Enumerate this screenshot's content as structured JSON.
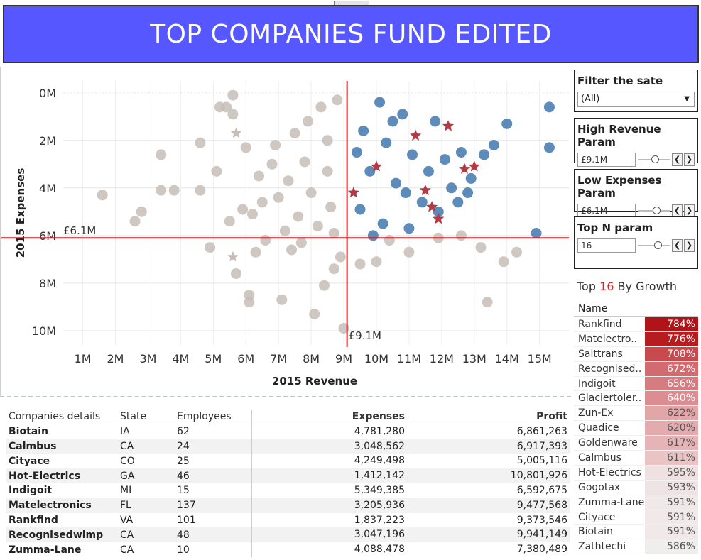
{
  "dashboard": {
    "title": "TOP COMPANIES FUND EDITED",
    "banner_color": "#5757ff"
  },
  "filters": {
    "state": {
      "title": "Filter the sate",
      "value": "(All)"
    },
    "high_revenue": {
      "title": "High Revenue Param",
      "value": "£9.1M",
      "slider_fraction": 0.55
    },
    "low_expenses": {
      "title": "Low Expenses Param",
      "value": "£6.1M",
      "slider_fraction": 0.6
    },
    "top_n": {
      "title": "Top N param",
      "value": "16",
      "slider_fraction": 0.65
    }
  },
  "chart_data": {
    "type": "scatter",
    "xlabel": "2015 Revenue",
    "ylabel": "2015 Expenses",
    "xlim": [
      0.4,
      15.9
    ],
    "ylim": [
      -0.5,
      10.6
    ],
    "x_ticks": [
      "1M",
      "2M",
      "3M",
      "4M",
      "5M",
      "6M",
      "7M",
      "8M",
      "9M",
      "10M",
      "11M",
      "12M",
      "13M",
      "14M",
      "15M"
    ],
    "y_ticks": [
      "0M",
      "2M",
      "4M",
      "6M",
      "8M",
      "10M"
    ],
    "y_axis_reversed": true,
    "grid": true,
    "reference_lines": [
      {
        "axis": "x",
        "value": 9.1,
        "label": "£9.1M"
      },
      {
        "axis": "y",
        "value": 6.1,
        "label": "£6.1M"
      }
    ],
    "colors": {
      "other": "#c7bdb7",
      "selected": "#4b7fb3",
      "top_growth": "#b23a44",
      "reference": "#d21e1e"
    },
    "highlight_points": [
      {
        "x": 11.2,
        "y": 1.8
      },
      {
        "x": 12.2,
        "y": 1.4
      },
      {
        "x": 10.0,
        "y": 3.1
      },
      {
        "x": 12.7,
        "y": 3.2
      },
      {
        "x": 13.0,
        "y": 3.1
      },
      {
        "x": 11.5,
        "y": 4.1
      },
      {
        "x": 9.3,
        "y": 4.2
      },
      {
        "x": 11.7,
        "y": 4.8
      },
      {
        "x": 11.9,
        "y": 5.3
      }
    ],
    "faded_highlight_points": [
      {
        "x": 5.7,
        "y": 1.7
      },
      {
        "x": 5.6,
        "y": 6.9
      }
    ],
    "selected_points": [
      {
        "x": 15.3,
        "y": 0.6
      },
      {
        "x": 14.0,
        "y": 1.3
      },
      {
        "x": 13.6,
        "y": 2.2
      },
      {
        "x": 15.3,
        "y": 2.3
      },
      {
        "x": 13.3,
        "y": 2.6
      },
      {
        "x": 14.9,
        "y": 5.9
      },
      {
        "x": 12.6,
        "y": 2.5
      },
      {
        "x": 12.9,
        "y": 3.6
      },
      {
        "x": 12.5,
        "y": 4.6
      },
      {
        "x": 12.8,
        "y": 4.2
      },
      {
        "x": 10.1,
        "y": 0.4
      },
      {
        "x": 10.8,
        "y": 0.9
      },
      {
        "x": 11.8,
        "y": 1.2
      },
      {
        "x": 9.6,
        "y": 1.6
      },
      {
        "x": 10.3,
        "y": 2.1
      },
      {
        "x": 11.1,
        "y": 2.6
      },
      {
        "x": 9.8,
        "y": 3.3
      },
      {
        "x": 10.6,
        "y": 3.8
      },
      {
        "x": 11.4,
        "y": 4.6
      },
      {
        "x": 9.5,
        "y": 4.9
      },
      {
        "x": 10.2,
        "y": 5.5
      },
      {
        "x": 11.0,
        "y": 5.7
      },
      {
        "x": 9.9,
        "y": 6.0
      },
      {
        "x": 11.6,
        "y": 3.3
      },
      {
        "x": 12.1,
        "y": 2.8
      },
      {
        "x": 9.4,
        "y": 2.5
      },
      {
        "x": 10.5,
        "y": 1.2
      },
      {
        "x": 12.3,
        "y": 4.0
      },
      {
        "x": 10.9,
        "y": 4.2
      },
      {
        "x": 11.9,
        "y": 5.0
      }
    ],
    "other_points": [
      {
        "x": 1.6,
        "y": 4.3
      },
      {
        "x": 2.8,
        "y": 5.0
      },
      {
        "x": 2.6,
        "y": 5.4
      },
      {
        "x": 3.4,
        "y": 4.1
      },
      {
        "x": 3.8,
        "y": 4.1
      },
      {
        "x": 3.4,
        "y": 2.6
      },
      {
        "x": 4.6,
        "y": 4.1
      },
      {
        "x": 4.6,
        "y": 2.1
      },
      {
        "x": 5.6,
        "y": 0.1
      },
      {
        "x": 5.2,
        "y": 0.6
      },
      {
        "x": 5.4,
        "y": 0.6
      },
      {
        "x": 5.6,
        "y": 0.9
      },
      {
        "x": 4.9,
        "y": 6.5
      },
      {
        "x": 5.7,
        "y": 7.6
      },
      {
        "x": 6.1,
        "y": 8.5
      },
      {
        "x": 6.1,
        "y": 8.8
      },
      {
        "x": 6.6,
        "y": 6.2
      },
      {
        "x": 7.1,
        "y": 8.7
      },
      {
        "x": 7.4,
        "y": 6.6
      },
      {
        "x": 8.1,
        "y": 9.3
      },
      {
        "x": 8.4,
        "y": 8.1
      },
      {
        "x": 9.0,
        "y": 9.9
      },
      {
        "x": 8.7,
        "y": 7.4
      },
      {
        "x": 8.9,
        "y": 6.9
      },
      {
        "x": 6.4,
        "y": 3.5
      },
      {
        "x": 6.9,
        "y": 2.2
      },
      {
        "x": 7.5,
        "y": 1.7
      },
      {
        "x": 7.9,
        "y": 1.2
      },
      {
        "x": 8.3,
        "y": 0.6
      },
      {
        "x": 8.8,
        "y": 0.3
      },
      {
        "x": 7.0,
        "y": 4.4
      },
      {
        "x": 7.6,
        "y": 5.2
      },
      {
        "x": 8.2,
        "y": 5.6
      },
      {
        "x": 6.2,
        "y": 5.1
      },
      {
        "x": 5.5,
        "y": 5.4
      },
      {
        "x": 6.8,
        "y": 3.0
      },
      {
        "x": 7.3,
        "y": 3.7
      },
      {
        "x": 8.0,
        "y": 4.2
      },
      {
        "x": 8.6,
        "y": 4.8
      },
      {
        "x": 6.5,
        "y": 4.6
      },
      {
        "x": 7.8,
        "y": 2.9
      },
      {
        "x": 8.5,
        "y": 3.3
      },
      {
        "x": 6.0,
        "y": 2.3
      },
      {
        "x": 5.9,
        "y": 4.9
      },
      {
        "x": 7.2,
        "y": 5.8
      },
      {
        "x": 8.7,
        "y": 5.9
      },
      {
        "x": 9.5,
        "y": 7.2
      },
      {
        "x": 10.4,
        "y": 6.2
      },
      {
        "x": 11.9,
        "y": 6.1
      },
      {
        "x": 12.6,
        "y": 6.0
      },
      {
        "x": 13.4,
        "y": 8.8
      },
      {
        "x": 13.9,
        "y": 7.1
      },
      {
        "x": 14.3,
        "y": 6.7
      },
      {
        "x": 13.2,
        "y": 6.5
      },
      {
        "x": 11.0,
        "y": 6.7
      },
      {
        "x": 10.0,
        "y": 7.1
      },
      {
        "x": 8.5,
        "y": 2.0
      },
      {
        "x": 5.1,
        "y": 3.3
      },
      {
        "x": 6.3,
        "y": 6.7
      },
      {
        "x": 7.7,
        "y": 6.3
      }
    ]
  },
  "top_growth": {
    "title_prefix": "Top ",
    "title_number": "16",
    "title_suffix": " By Growth",
    "column_header": "Name",
    "rows": [
      {
        "name": "Rankfind",
        "pct": "784%",
        "color": "#b01418"
      },
      {
        "name": "Matelectro..",
        "pct": "776%",
        "color": "#b51d20"
      },
      {
        "name": "Salttrans",
        "pct": "708%",
        "color": "#c74a4e"
      },
      {
        "name": "Recognised..",
        "pct": "672%",
        "color": "#d16b70"
      },
      {
        "name": "Indigoit",
        "pct": "656%",
        "color": "#d67b80"
      },
      {
        "name": "Glaciertoler..",
        "pct": "640%",
        "color": "#dc8d91"
      },
      {
        "name": "Zun-Ex",
        "pct": "622%",
        "color": "#e2a5a8"
      },
      {
        "name": "Quadice",
        "pct": "620%",
        "color": "#e4abae"
      },
      {
        "name": "Goldenware",
        "pct": "617%",
        "color": "#e6b4b7"
      },
      {
        "name": "Calmbus",
        "pct": "611%",
        "color": "#eac3c5"
      },
      {
        "name": "Hot-Electrics",
        "pct": "595%",
        "color": "#efe0e1"
      },
      {
        "name": "Gogotax",
        "pct": "593%",
        "color": "#efe4e5"
      },
      {
        "name": "Zumma-Lane",
        "pct": "591%",
        "color": "#f0e8e9"
      },
      {
        "name": "Cityace",
        "pct": "591%",
        "color": "#f0e8e9"
      },
      {
        "name": "Biotain",
        "pct": "591%",
        "color": "#f0e8e9"
      },
      {
        "name": "Zathtechi",
        "pct": "586%",
        "color": "#f0eded"
      }
    ]
  },
  "details": {
    "headers": {
      "name": "Companies details",
      "state": "State",
      "employees": "Employees",
      "expenses": "Expenses",
      "profit": "Profit"
    },
    "rows": [
      {
        "name": "Biotain",
        "state": "IA",
        "employees": "62",
        "expenses": "4,781,280",
        "profit": "6,861,263"
      },
      {
        "name": "Calmbus",
        "state": "CA",
        "employees": "24",
        "expenses": "3,048,562",
        "profit": "6,917,393"
      },
      {
        "name": "Cityace",
        "state": "CO",
        "employees": "25",
        "expenses": "4,249,498",
        "profit": "5,005,116"
      },
      {
        "name": "Hot-Electrics",
        "state": "GA",
        "employees": "46",
        "expenses": "1,412,142",
        "profit": "10,801,926"
      },
      {
        "name": "Indigoit",
        "state": "MI",
        "employees": "15",
        "expenses": "5,349,385",
        "profit": "6,592,675"
      },
      {
        "name": "Matelectronics",
        "state": "FL",
        "employees": "137",
        "expenses": "3,205,936",
        "profit": "9,477,568"
      },
      {
        "name": "Rankfind",
        "state": "VA",
        "employees": "101",
        "expenses": "1,837,223",
        "profit": "9,373,546"
      },
      {
        "name": "Recognisedwimp",
        "state": "CA",
        "employees": "48",
        "expenses": "3,047,196",
        "profit": "9,941,149"
      },
      {
        "name": "Zumma-Lane",
        "state": "CA",
        "employees": "10",
        "expenses": "4,088,478",
        "profit": "7,380,489"
      }
    ]
  }
}
